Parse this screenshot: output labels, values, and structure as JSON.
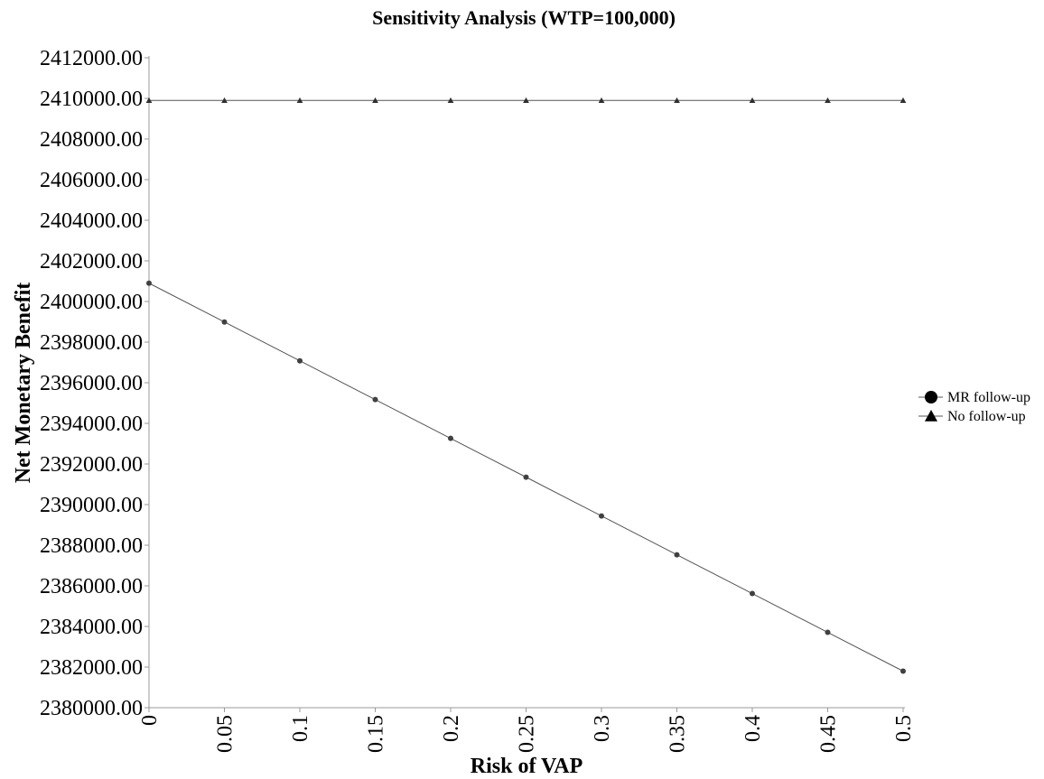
{
  "chart_data": {
    "type": "line",
    "title": "Sensitivity Analysis (WTP=100,000)",
    "xlabel": "Risk of VAP",
    "ylabel": "Net Monetary Benefit",
    "x": [
      0,
      0.05,
      0.1,
      0.15,
      0.2,
      0.25,
      0.3,
      0.35,
      0.4,
      0.45,
      0.5
    ],
    "x_tick_labels": [
      "0",
      "0.05",
      "0.1",
      "0.15",
      "0.2",
      "0.25",
      "0.3",
      "0.35",
      "0.4",
      "0.45",
      "0.5"
    ],
    "xlim": [
      0,
      0.5
    ],
    "ylim": [
      2380000,
      2412000
    ],
    "y_ticks": [
      2380000,
      2382000,
      2384000,
      2386000,
      2388000,
      2390000,
      2392000,
      2394000,
      2396000,
      2398000,
      2400000,
      2402000,
      2404000,
      2406000,
      2408000,
      2410000,
      2412000
    ],
    "y_tick_labels": [
      "2380000.00",
      "2382000.00",
      "2384000.00",
      "2386000.00",
      "2388000.00",
      "2390000.00",
      "2392000.00",
      "2394000.00",
      "2396000.00",
      "2398000.00",
      "2400000.00",
      "2402000.00",
      "2404000.00",
      "2406000.00",
      "2408000.00",
      "2410000.00",
      "2412000.00"
    ],
    "grid": false,
    "legend_position": "right",
    "series": [
      {
        "name": "MR follow-up",
        "marker": "circle",
        "color": "#404040",
        "values": [
          2400900,
          2398990,
          2397080,
          2395170,
          2393260,
          2391350,
          2389440,
          2387530,
          2385620,
          2383710,
          2381800
        ]
      },
      {
        "name": "No follow-up",
        "marker": "triangle",
        "color": "#303030",
        "values": [
          2409900,
          2409900,
          2409900,
          2409900,
          2409900,
          2409900,
          2409900,
          2409900,
          2409900,
          2409900,
          2409900
        ]
      }
    ]
  }
}
